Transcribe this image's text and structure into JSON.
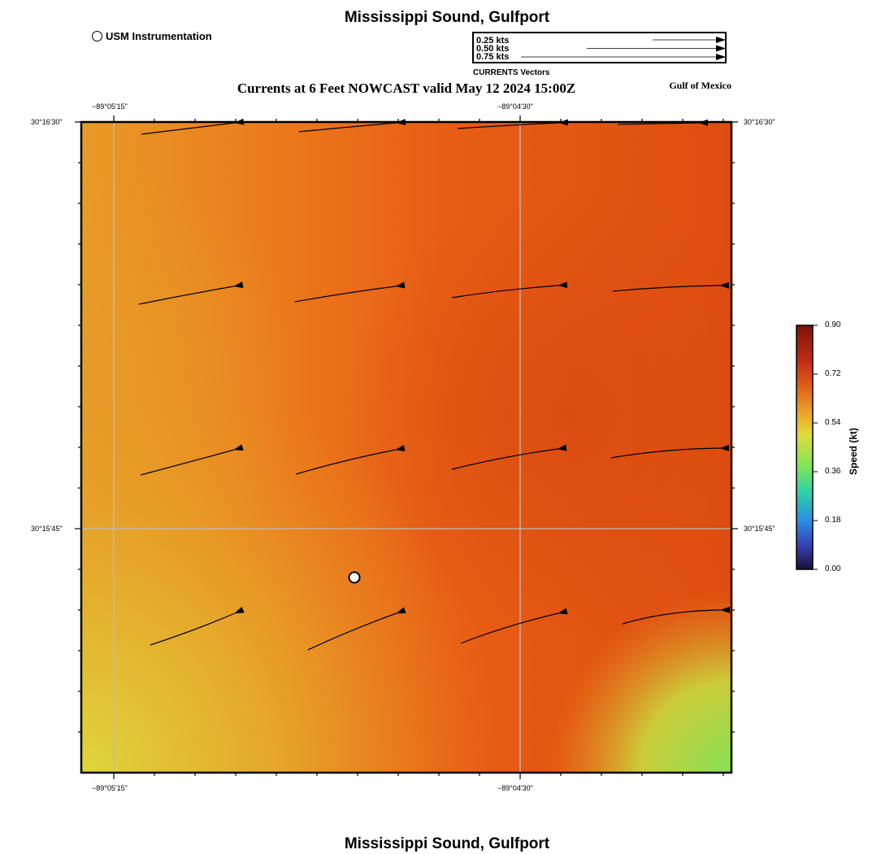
{
  "title_top": "Mississippi Sound, Gulfport",
  "title_bottom": "Mississippi Sound, Gulfport",
  "station_legend": "USM Instrumentation",
  "subtitle": "Currents at 6 Feet NOWCAST valid May 12 2024 15:00Z",
  "region": "Gulf of Mexico",
  "vector_legend": {
    "caption": "CURRENTS Vectors",
    "items": [
      "0.25 kts",
      "0.50 kts",
      "0.75 kts"
    ]
  },
  "axes": {
    "x_ticks": [
      "−89°05'15\"",
      "−89°04'30\""
    ],
    "y_ticks": [
      "30°16'30\"",
      "30°15'45\""
    ]
  },
  "colorbar": {
    "title": "Speed (kt)",
    "ticks": [
      "0.90",
      "0.72",
      "0.54",
      "0.36",
      "0.18",
      "0.00"
    ],
    "colors": [
      "#7a1308",
      "#d5381a",
      "#ec8a1f",
      "#e8d53a",
      "#7ee45a",
      "#31d2a6",
      "#2a8fe0",
      "#3742b6",
      "#1c0f3c"
    ]
  },
  "station_marker": {
    "name": "USM Instrumentation"
  },
  "field_colors": {
    "yellow": "#dfd63c",
    "orange": "#e89424",
    "red_orange": "#e55a14",
    "deep": "#dc4c10",
    "green": "#86e258"
  }
}
